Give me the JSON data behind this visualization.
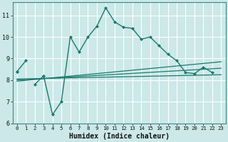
{
  "xlabel": "Humidex (Indice chaleur)",
  "background_color": "#cce8e8",
  "grid_color": "#ffffff",
  "line_color": "#1a7a6e",
  "xlim": [
    -0.5,
    23.5
  ],
  "ylim": [
    6.0,
    11.6
  ],
  "yticks": [
    6,
    7,
    8,
    9,
    10,
    11
  ],
  "xticks": [
    0,
    1,
    2,
    3,
    4,
    5,
    6,
    7,
    8,
    9,
    10,
    11,
    12,
    13,
    14,
    15,
    16,
    17,
    18,
    19,
    20,
    21,
    22,
    23
  ],
  "x": [
    0,
    1,
    2,
    3,
    4,
    5,
    6,
    7,
    8,
    9,
    10,
    11,
    12,
    13,
    14,
    15,
    16,
    17,
    18,
    19,
    20,
    21,
    22,
    23
  ],
  "line1": [
    8.4,
    8.9,
    null,
    8.2,
    6.4,
    7.0,
    10.0,
    9.3,
    10.0,
    10.5,
    11.35,
    10.7,
    10.45,
    10.4,
    9.9,
    10.0,
    9.6,
    9.2,
    8.9,
    8.35,
    8.3,
    8.6,
    8.35,
    null
  ],
  "line2": [
    8.4,
    null,
    7.8,
    8.2,
    null,
    null,
    null,
    null,
    null,
    null,
    null,
    null,
    null,
    null,
    null,
    null,
    null,
    null,
    null,
    null,
    null,
    null,
    null,
    null
  ],
  "line3_x": [
    0,
    23
  ],
  "line3_y": [
    8.05,
    8.25
  ],
  "line4_x": [
    0,
    23
  ],
  "line4_y": [
    7.95,
    8.85
  ],
  "line5_x": [
    0,
    23
  ],
  "line5_y": [
    8.0,
    8.55
  ]
}
